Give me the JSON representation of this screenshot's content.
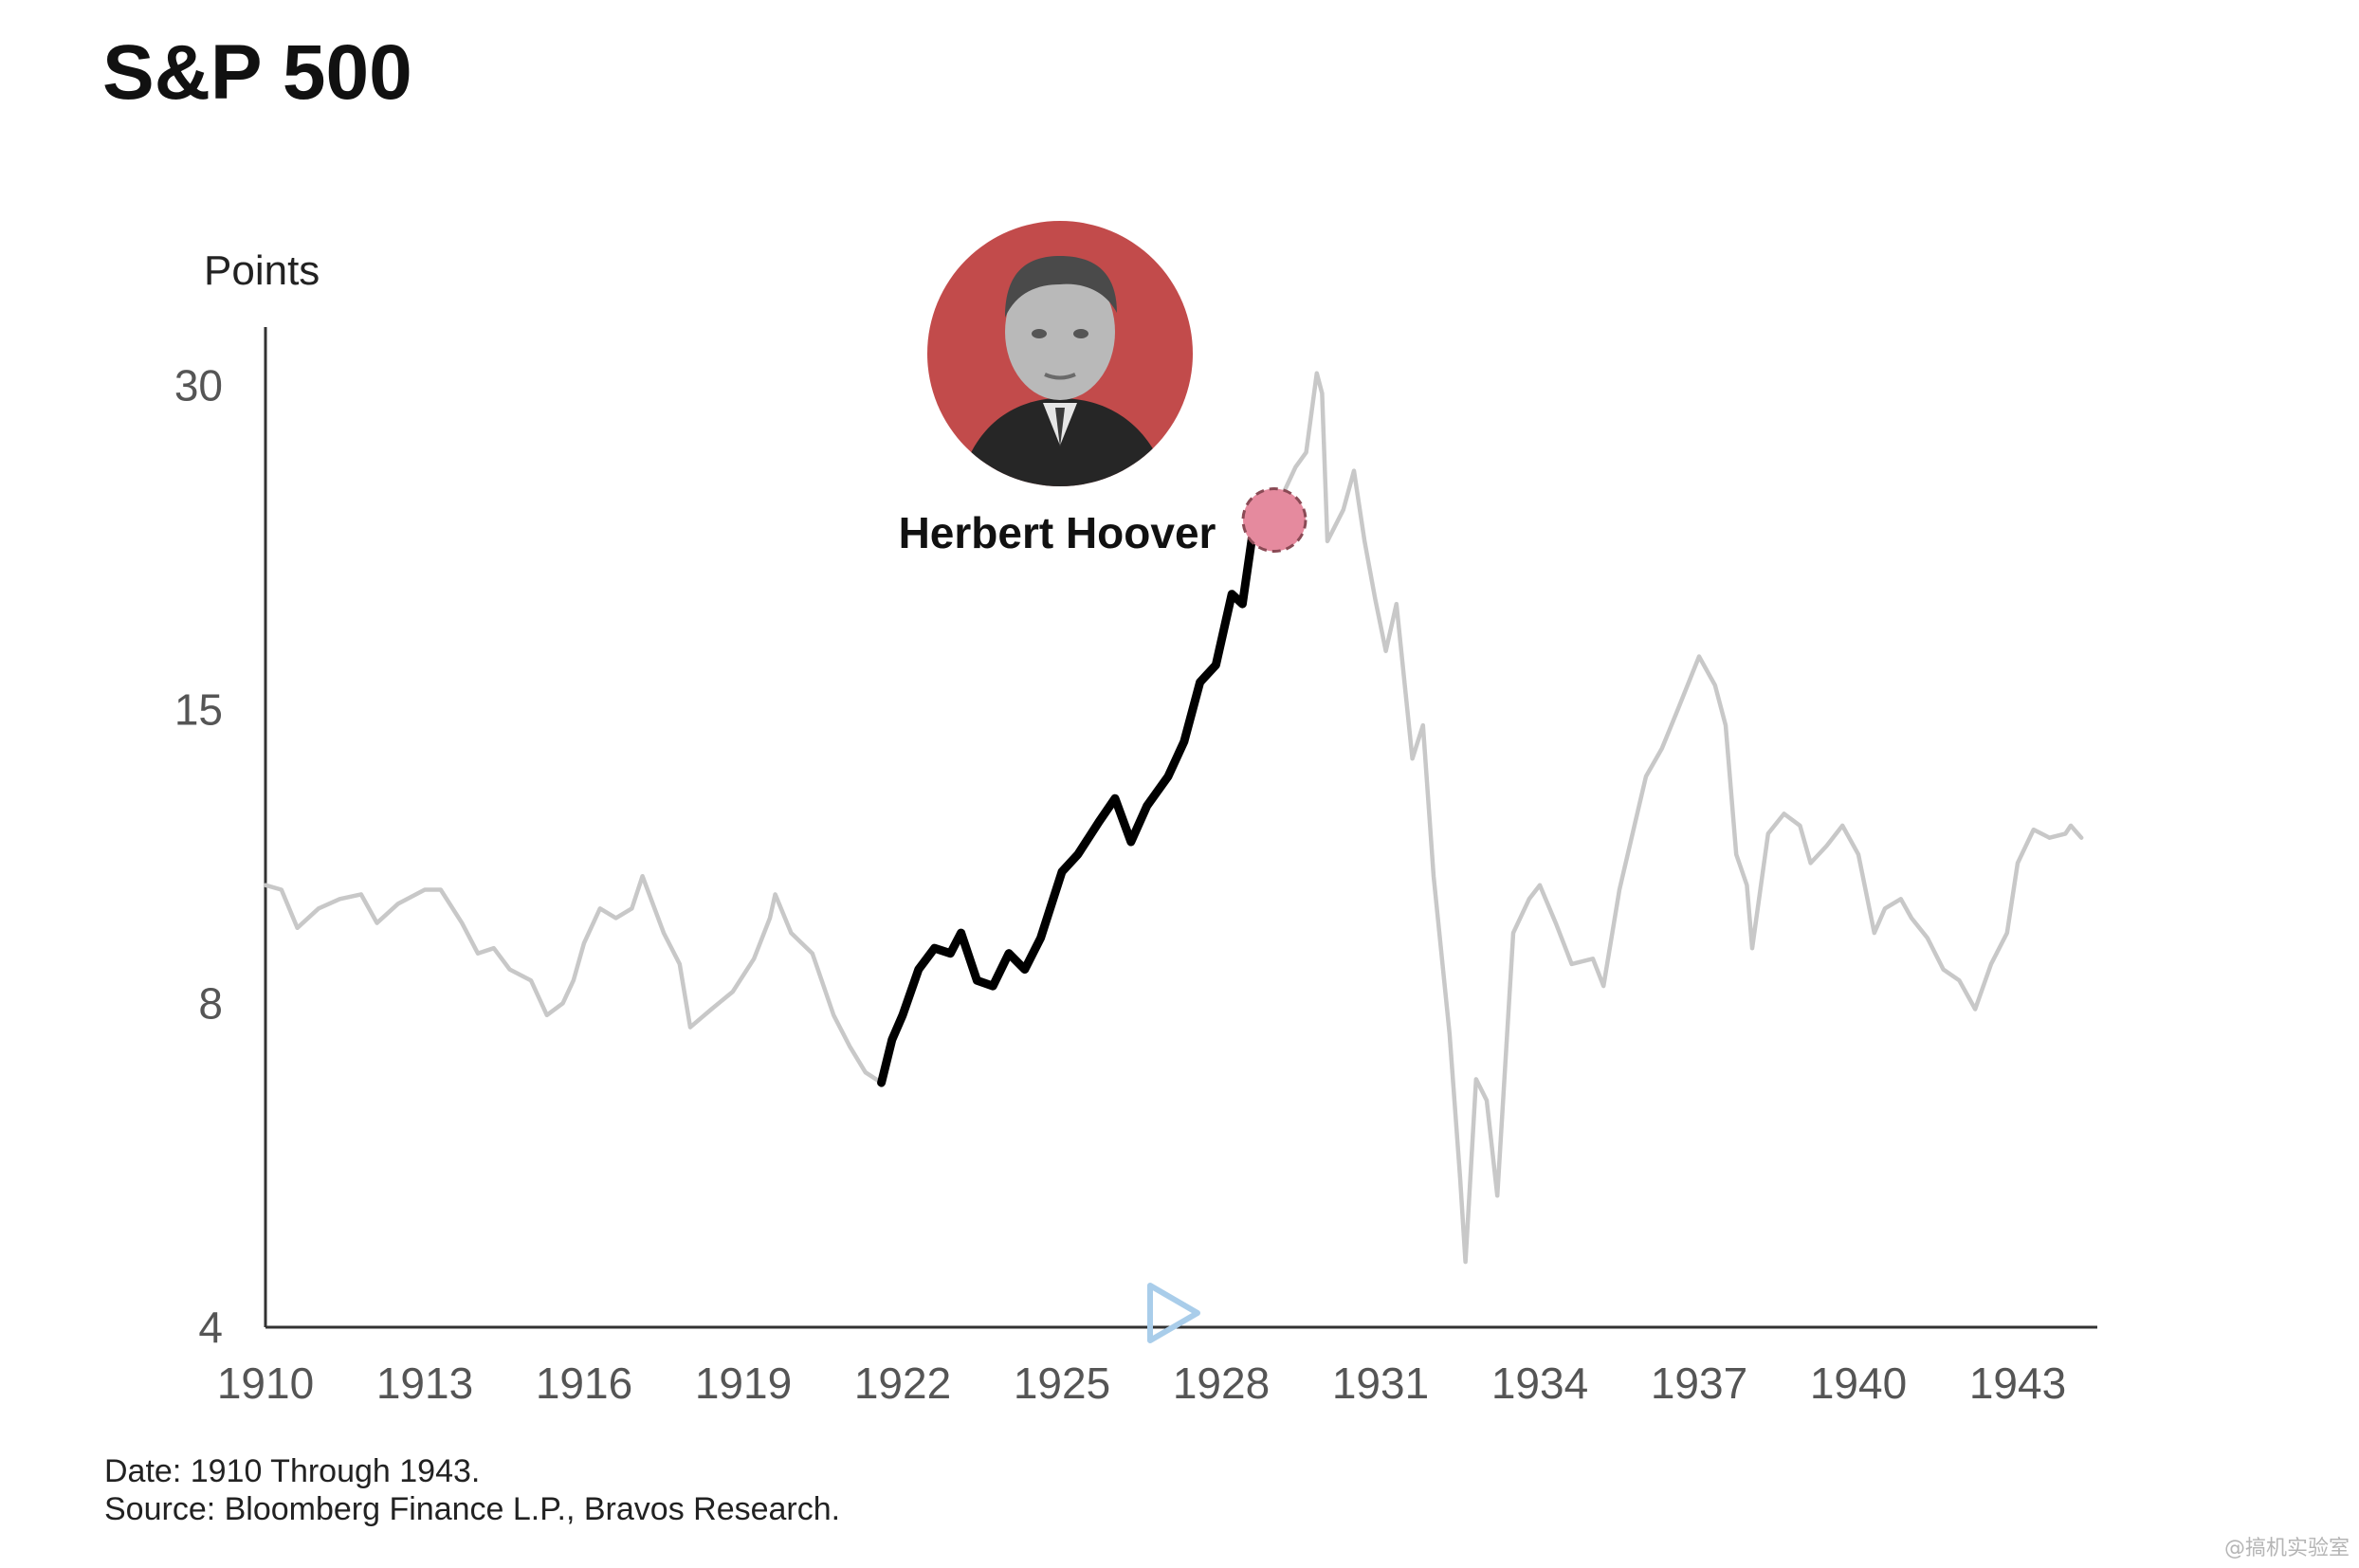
{
  "header": {
    "title": "S&P 500"
  },
  "annotation": {
    "name": "Herbert Hoover",
    "marker_date": "1929-01"
  },
  "watermark": "@搞机实验室",
  "colors": {
    "context_line": "#c8c8c8",
    "highlight_line": "#000000",
    "portrait_bg": "#c24b4b",
    "marker_fill": "#e58a9e",
    "axis": "#333333"
  },
  "footnotes": {
    "date": "Date: 1910 Through 1943.",
    "source": "Source: Bloomberg Finance L.P., Bravos Research."
  },
  "chart_data": {
    "type": "line",
    "title": "S&P 500",
    "ylabel": "Points",
    "yscale": "log",
    "xlim": [
      1910,
      1944.5
    ],
    "ylim": [
      4,
      34
    ],
    "xticks": [
      "1910",
      "1913",
      "1916",
      "1919",
      "1922",
      "1925",
      "1928",
      "1931",
      "1934",
      "1937",
      "1940",
      "1943"
    ],
    "yticks": [
      "4",
      "8",
      "15",
      "30"
    ],
    "grid": false,
    "legend": "none",
    "series": [
      {
        "role": "context",
        "points": [
          [
            1910.0,
            10.3
          ],
          [
            1910.3,
            10.2
          ],
          [
            1910.6,
            9.4
          ],
          [
            1911.0,
            9.8
          ],
          [
            1911.4,
            10.0
          ],
          [
            1911.8,
            10.1
          ],
          [
            1912.1,
            9.5
          ],
          [
            1912.5,
            9.9
          ],
          [
            1913.0,
            10.2
          ],
          [
            1913.3,
            10.2
          ],
          [
            1913.7,
            9.5
          ],
          [
            1914.0,
            8.9
          ],
          [
            1914.3,
            9.0
          ],
          [
            1914.6,
            8.6
          ],
          [
            1915.0,
            8.4
          ],
          [
            1915.3,
            7.8
          ],
          [
            1915.6,
            8.0
          ],
          [
            1915.8,
            8.4
          ],
          [
            1916.0,
            9.1
          ],
          [
            1916.3,
            9.8
          ],
          [
            1916.6,
            9.6
          ],
          [
            1916.9,
            9.8
          ],
          [
            1917.1,
            10.5
          ],
          [
            1917.5,
            9.3
          ],
          [
            1917.8,
            8.7
          ],
          [
            1918.0,
            7.6
          ],
          [
            1918.4,
            7.9
          ],
          [
            1918.8,
            8.2
          ],
          [
            1919.2,
            8.8
          ],
          [
            1919.5,
            9.6
          ],
          [
            1919.6,
            10.1
          ],
          [
            1919.9,
            9.3
          ],
          [
            1920.3,
            8.9
          ],
          [
            1920.7,
            7.8
          ],
          [
            1921.0,
            7.3
          ],
          [
            1921.3,
            6.9
          ],
          [
            1921.6,
            6.75
          ]
        ]
      },
      {
        "role": "highlight",
        "points": [
          [
            1921.6,
            6.75
          ],
          [
            1921.8,
            7.4
          ],
          [
            1922.0,
            7.8
          ],
          [
            1922.3,
            8.6
          ],
          [
            1922.6,
            9.0
          ],
          [
            1922.9,
            8.9
          ],
          [
            1923.1,
            9.3
          ],
          [
            1923.4,
            8.4
          ],
          [
            1923.7,
            8.3
          ],
          [
            1924.0,
            8.9
          ],
          [
            1924.3,
            8.6
          ],
          [
            1924.6,
            9.2
          ],
          [
            1925.0,
            10.6
          ],
          [
            1925.3,
            11.0
          ],
          [
            1925.7,
            11.8
          ],
          [
            1926.0,
            12.4
          ],
          [
            1926.3,
            11.3
          ],
          [
            1926.6,
            12.2
          ],
          [
            1927.0,
            13.0
          ],
          [
            1927.3,
            14.0
          ],
          [
            1927.6,
            15.9
          ],
          [
            1927.9,
            16.5
          ],
          [
            1928.2,
            19.2
          ],
          [
            1928.4,
            18.8
          ],
          [
            1928.6,
            22.0
          ],
          [
            1928.8,
            22.4
          ],
          [
            1929.0,
            22.5
          ]
        ]
      },
      {
        "role": "context",
        "points": [
          [
            1929.0,
            22.5
          ],
          [
            1929.2,
            24.0
          ],
          [
            1929.4,
            25.2
          ],
          [
            1929.6,
            26.0
          ],
          [
            1929.8,
            30.8
          ],
          [
            1929.9,
            29.5
          ],
          [
            1930.0,
            21.5
          ],
          [
            1930.3,
            23.0
          ],
          [
            1930.5,
            25.0
          ],
          [
            1930.7,
            21.5
          ],
          [
            1930.9,
            19.0
          ],
          [
            1931.1,
            17.0
          ],
          [
            1931.3,
            18.8
          ],
          [
            1931.6,
            13.5
          ],
          [
            1931.8,
            14.5
          ],
          [
            1932.0,
            10.5
          ],
          [
            1932.3,
            7.5
          ],
          [
            1932.5,
            5.5
          ],
          [
            1932.6,
            4.6
          ],
          [
            1932.8,
            6.8
          ],
          [
            1933.0,
            6.5
          ],
          [
            1933.2,
            5.3
          ],
          [
            1933.5,
            9.3
          ],
          [
            1933.8,
            10.0
          ],
          [
            1934.0,
            10.3
          ],
          [
            1934.3,
            9.5
          ],
          [
            1934.6,
            8.7
          ],
          [
            1935.0,
            8.8
          ],
          [
            1935.2,
            8.3
          ],
          [
            1935.5,
            10.2
          ],
          [
            1935.8,
            11.8
          ],
          [
            1936.0,
            13.0
          ],
          [
            1936.3,
            13.8
          ],
          [
            1936.6,
            15.0
          ],
          [
            1937.0,
            16.8
          ],
          [
            1937.3,
            15.8
          ],
          [
            1937.5,
            14.5
          ],
          [
            1937.7,
            11.0
          ],
          [
            1937.9,
            10.3
          ],
          [
            1938.0,
            9.0
          ],
          [
            1938.3,
            11.5
          ],
          [
            1938.6,
            12.0
          ],
          [
            1938.9,
            11.7
          ],
          [
            1939.1,
            10.8
          ],
          [
            1939.4,
            11.2
          ],
          [
            1939.7,
            11.7
          ],
          [
            1940.0,
            11.0
          ],
          [
            1940.3,
            9.3
          ],
          [
            1940.5,
            9.8
          ],
          [
            1940.8,
            10.0
          ],
          [
            1941.0,
            9.6
          ],
          [
            1941.3,
            9.2
          ],
          [
            1941.6,
            8.6
          ],
          [
            1941.9,
            8.4
          ],
          [
            1942.2,
            7.9
          ],
          [
            1942.5,
            8.7
          ],
          [
            1942.8,
            9.3
          ],
          [
            1943.0,
            10.8
          ],
          [
            1943.3,
            11.6
          ],
          [
            1943.6,
            11.4
          ],
          [
            1943.9,
            11.5
          ],
          [
            1944.0,
            11.7
          ],
          [
            1944.2,
            11.4
          ]
        ]
      }
    ]
  }
}
